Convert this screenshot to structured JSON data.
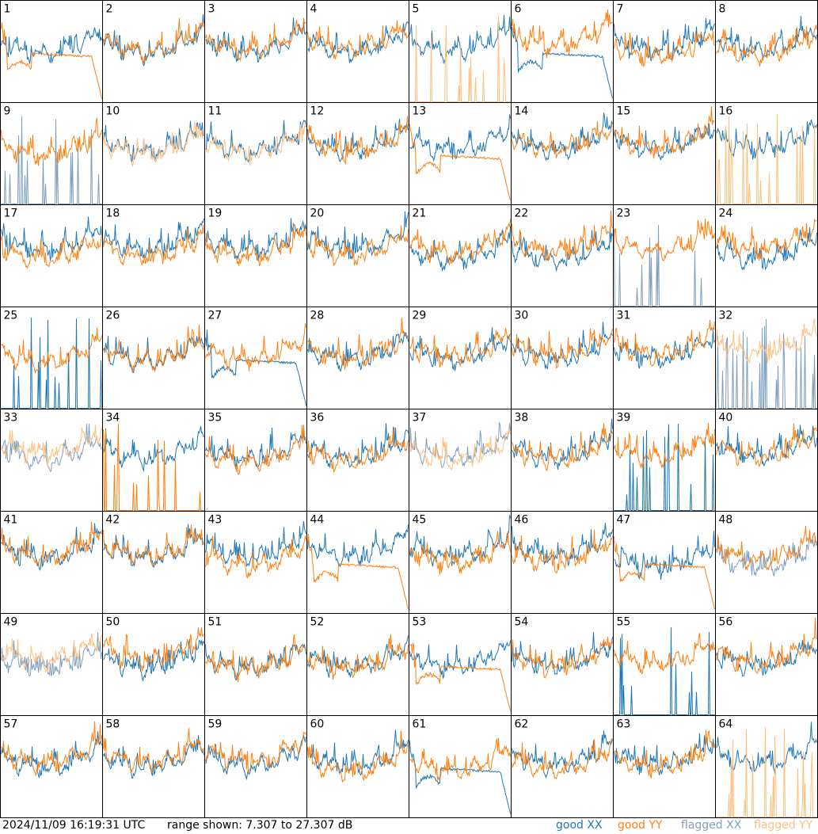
{
  "timestamp": "2024/11/09 16:19:31 UTC",
  "range_text": "range shown: 7.307 to 27.307 dB",
  "legend": {
    "good_xx": "good XX",
    "good_yy": "good YY",
    "flagged_xx": "flagged XX",
    "flagged_yy": "flagged YY"
  },
  "colors": {
    "good_xx": "#1f77b4",
    "good_yy": "#ff7f0e",
    "flagged_xx": "#7f9fbf",
    "flagged_yy": "#ffbf7f",
    "frame": "#000000"
  },
  "chart_data": {
    "type": "line",
    "ylim_db": [
      7.307,
      27.307
    ],
    "grid_rows": 8,
    "grid_cols": 8,
    "note_units": "dB",
    "panels": [
      {
        "id": "1",
        "xx": "good",
        "yy": "good",
        "xx_style": "noise",
        "yy_style": "dip"
      },
      {
        "id": "2",
        "xx": "good",
        "yy": "good",
        "xx_style": "noise",
        "yy_style": "noise"
      },
      {
        "id": "3",
        "xx": "good",
        "yy": "good",
        "xx_style": "noise",
        "yy_style": "noise"
      },
      {
        "id": "4",
        "xx": "good",
        "yy": "good",
        "xx_style": "noise",
        "yy_style": "noise"
      },
      {
        "id": "5",
        "xx": "good",
        "yy": "flagged",
        "xx_style": "noise",
        "yy_style": "spikes"
      },
      {
        "id": "6",
        "xx": "good",
        "yy": "good",
        "xx_style": "dip",
        "yy_style": "noise"
      },
      {
        "id": "7",
        "xx": "good",
        "yy": "good",
        "xx_style": "noise",
        "yy_style": "noise"
      },
      {
        "id": "8",
        "xx": "good",
        "yy": "good",
        "xx_style": "noise",
        "yy_style": "noise"
      },
      {
        "id": "9",
        "xx": "flagged",
        "yy": "good",
        "xx_style": "spikes",
        "yy_style": "noise"
      },
      {
        "id": "10",
        "xx": "good",
        "yy": "flagged",
        "xx_style": "noise",
        "yy_style": "noise"
      },
      {
        "id": "11",
        "xx": "good",
        "yy": "flagged",
        "xx_style": "noise",
        "yy_style": "noise"
      },
      {
        "id": "12",
        "xx": "good",
        "yy": "good",
        "xx_style": "noise",
        "yy_style": "noise"
      },
      {
        "id": "13",
        "xx": "good",
        "yy": "good",
        "xx_style": "noise",
        "yy_style": "dip"
      },
      {
        "id": "14",
        "xx": "good",
        "yy": "good",
        "xx_style": "noise",
        "yy_style": "noise"
      },
      {
        "id": "15",
        "xx": "good",
        "yy": "good",
        "xx_style": "noise",
        "yy_style": "noise"
      },
      {
        "id": "16",
        "xx": "good",
        "yy": "flagged",
        "xx_style": "noise",
        "yy_style": "spikes"
      },
      {
        "id": "17",
        "xx": "good",
        "yy": "good",
        "xx_style": "noise",
        "yy_style": "noise"
      },
      {
        "id": "18",
        "xx": "good",
        "yy": "good",
        "xx_style": "noise",
        "yy_style": "noise"
      },
      {
        "id": "19",
        "xx": "good",
        "yy": "good",
        "xx_style": "noise",
        "yy_style": "noise"
      },
      {
        "id": "20",
        "xx": "good",
        "yy": "good",
        "xx_style": "noise",
        "yy_style": "noise"
      },
      {
        "id": "21",
        "xx": "good",
        "yy": "good",
        "xx_style": "noise",
        "yy_style": "noise"
      },
      {
        "id": "22",
        "xx": "good",
        "yy": "good",
        "xx_style": "noise",
        "yy_style": "noise"
      },
      {
        "id": "23",
        "xx": "flagged",
        "yy": "good",
        "xx_style": "spikes",
        "yy_style": "noise"
      },
      {
        "id": "24",
        "xx": "good",
        "yy": "good",
        "xx_style": "noise",
        "yy_style": "noise"
      },
      {
        "id": "25",
        "xx": "good",
        "yy": "good",
        "xx_style": "spikes",
        "yy_style": "noise"
      },
      {
        "id": "26",
        "xx": "good",
        "yy": "good",
        "xx_style": "noise",
        "yy_style": "noise"
      },
      {
        "id": "27",
        "xx": "good",
        "yy": "good",
        "xx_style": "dip",
        "yy_style": "noise"
      },
      {
        "id": "28",
        "xx": "good",
        "yy": "good",
        "xx_style": "noise",
        "yy_style": "noise"
      },
      {
        "id": "29",
        "xx": "good",
        "yy": "good",
        "xx_style": "noise",
        "yy_style": "noise"
      },
      {
        "id": "30",
        "xx": "good",
        "yy": "good",
        "xx_style": "noise",
        "yy_style": "noise"
      },
      {
        "id": "31",
        "xx": "good",
        "yy": "good",
        "xx_style": "noise",
        "yy_style": "noise"
      },
      {
        "id": "32",
        "xx": "flagged",
        "yy": "flagged",
        "xx_style": "spikes",
        "yy_style": "noise"
      },
      {
        "id": "33",
        "xx": "flagged",
        "yy": "flagged",
        "xx_style": "noise",
        "yy_style": "noise"
      },
      {
        "id": "34",
        "xx": "good",
        "yy": "good",
        "xx_style": "noise",
        "yy_style": "spikes"
      },
      {
        "id": "35",
        "xx": "good",
        "yy": "good",
        "xx_style": "noise",
        "yy_style": "noise"
      },
      {
        "id": "36",
        "xx": "good",
        "yy": "good",
        "xx_style": "noise",
        "yy_style": "noise"
      },
      {
        "id": "37",
        "xx": "flagged",
        "yy": "flagged",
        "xx_style": "noise",
        "yy_style": "noise"
      },
      {
        "id": "38",
        "xx": "good",
        "yy": "good",
        "xx_style": "noise",
        "yy_style": "noise"
      },
      {
        "id": "39",
        "xx": "good",
        "yy": "good",
        "xx_style": "spikes",
        "yy_style": "noise"
      },
      {
        "id": "40",
        "xx": "good",
        "yy": "good",
        "xx_style": "noise",
        "yy_style": "noise"
      },
      {
        "id": "41",
        "xx": "good",
        "yy": "good",
        "xx_style": "noise",
        "yy_style": "noise"
      },
      {
        "id": "42",
        "xx": "good",
        "yy": "good",
        "xx_style": "noise",
        "yy_style": "noise"
      },
      {
        "id": "43",
        "xx": "good",
        "yy": "good",
        "xx_style": "noise",
        "yy_style": "noise"
      },
      {
        "id": "44",
        "xx": "good",
        "yy": "good",
        "xx_style": "noise",
        "yy_style": "dip"
      },
      {
        "id": "45",
        "xx": "good",
        "yy": "good",
        "xx_style": "noise",
        "yy_style": "noise"
      },
      {
        "id": "46",
        "xx": "good",
        "yy": "good",
        "xx_style": "noise",
        "yy_style": "noise"
      },
      {
        "id": "47",
        "xx": "good",
        "yy": "good",
        "xx_style": "noise",
        "yy_style": "dip"
      },
      {
        "id": "48",
        "xx": "flagged",
        "yy": "good",
        "xx_style": "noise",
        "yy_style": "noise"
      },
      {
        "id": "49",
        "xx": "flagged",
        "yy": "flagged",
        "xx_style": "noise",
        "yy_style": "noise"
      },
      {
        "id": "50",
        "xx": "good",
        "yy": "good",
        "xx_style": "noise",
        "yy_style": "noise"
      },
      {
        "id": "51",
        "xx": "good",
        "yy": "good",
        "xx_style": "noise",
        "yy_style": "noise"
      },
      {
        "id": "52",
        "xx": "good",
        "yy": "good",
        "xx_style": "noise",
        "yy_style": "noise"
      },
      {
        "id": "53",
        "xx": "good",
        "yy": "good",
        "xx_style": "noise",
        "yy_style": "dip"
      },
      {
        "id": "54",
        "xx": "good",
        "yy": "good",
        "xx_style": "noise",
        "yy_style": "noise"
      },
      {
        "id": "55",
        "xx": "good",
        "yy": "good",
        "xx_style": "spikes",
        "yy_style": "noise"
      },
      {
        "id": "56",
        "xx": "good",
        "yy": "good",
        "xx_style": "noise",
        "yy_style": "noise"
      },
      {
        "id": "57",
        "xx": "good",
        "yy": "good",
        "xx_style": "noise",
        "yy_style": "noise"
      },
      {
        "id": "58",
        "xx": "good",
        "yy": "good",
        "xx_style": "noise",
        "yy_style": "noise"
      },
      {
        "id": "59",
        "xx": "good",
        "yy": "good",
        "xx_style": "noise",
        "yy_style": "noise"
      },
      {
        "id": "60",
        "xx": "good",
        "yy": "good",
        "xx_style": "noise",
        "yy_style": "noise"
      },
      {
        "id": "61",
        "xx": "good",
        "yy": "good",
        "xx_style": "dip",
        "yy_style": "noise"
      },
      {
        "id": "62",
        "xx": "good",
        "yy": "good",
        "xx_style": "noise",
        "yy_style": "noise"
      },
      {
        "id": "63",
        "xx": "good",
        "yy": "good",
        "xx_style": "noise",
        "yy_style": "noise"
      },
      {
        "id": "64",
        "xx": "good",
        "yy": "flagged",
        "xx_style": "noise",
        "yy_style": "spikes"
      }
    ]
  }
}
